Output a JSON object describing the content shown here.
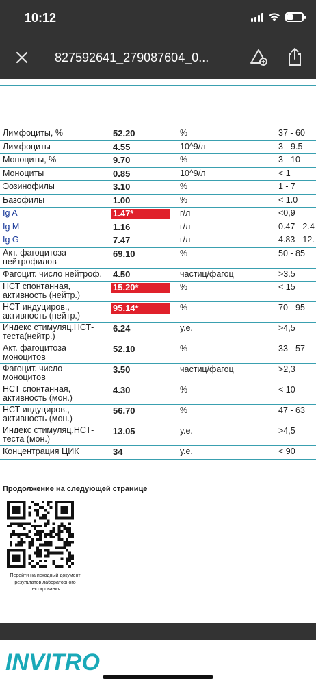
{
  "status_bar": {
    "time": "10:12"
  },
  "nav": {
    "title": "827592641_279087604_0..."
  },
  "results": [
    {
      "name": "Лимфоциты, %",
      "value": "52.20",
      "unit": "%",
      "ref": "37 - 60",
      "flag": false
    },
    {
      "name": "Лимфоциты",
      "value": "4.55",
      "unit": "10^9/л",
      "ref": "3 - 9.5",
      "flag": false
    },
    {
      "name": "Моноциты, %",
      "value": "9.70",
      "unit": "%",
      "ref": "3 - 10",
      "flag": false
    },
    {
      "name": "Моноциты",
      "value": "0.85",
      "unit": "10^9/л",
      "ref": "< 1",
      "flag": false
    },
    {
      "name": "Эозинофилы",
      "value": "3.10",
      "unit": "%",
      "ref": "1 - 7",
      "flag": false
    },
    {
      "name": "Базофилы",
      "value": "1.00",
      "unit": "%",
      "ref": "< 1.0",
      "flag": false
    },
    {
      "name": "Ig A",
      "value": "1.47*",
      "unit": "г/л",
      "ref": "<0,9",
      "flag": true
    },
    {
      "name": "Ig M",
      "value": "1.16",
      "unit": "г/л",
      "ref": "0.47 - 2.4",
      "flag": false
    },
    {
      "name": "Ig G",
      "value": "7.47",
      "unit": "г/л",
      "ref": "4.83 - 12.",
      "flag": false
    },
    {
      "name": "Акт. фагоцитоза нейтрофилов",
      "value": "69.10",
      "unit": "%",
      "ref": "50 - 85",
      "flag": false
    },
    {
      "name": "Фагоцит. число нейтроф.",
      "value": "4.50",
      "unit": "частиц/фагоц",
      "ref": ">3.5",
      "flag": false
    },
    {
      "name": "НСТ спонтанная, активность (нейтр.)",
      "value": "15.20*",
      "unit": "%",
      "ref": "< 15",
      "flag": true
    },
    {
      "name": "НСТ индуциров., активность (нейтр.)",
      "value": "95.14*",
      "unit": "%",
      "ref": "70 - 95",
      "flag": true
    },
    {
      "name": "Индекс стимуляц.НСТ-теста(нейтр.)",
      "value": "6.24",
      "unit": "у.е.",
      "ref": ">4,5",
      "flag": false
    },
    {
      "name": "Акт. фагоцитоза моноцитов",
      "value": "52.10",
      "unit": "%",
      "ref": "33 - 57",
      "flag": false
    },
    {
      "name": "Фагоцит. число моноцитов",
      "value": "3.50",
      "unit": "частиц/фагоц",
      "ref": ">2,3",
      "flag": false
    },
    {
      "name": "НСТ спонтанная, активность (мон.)",
      "value": "4.30",
      "unit": "%",
      "ref": "< 10",
      "flag": false
    },
    {
      "name": "НСТ индуциров., активность (мон.)",
      "value": "56.70",
      "unit": "%",
      "ref": "47 - 63",
      "flag": false
    },
    {
      "name": "Индекс стимуляц.НСТ-теста (мон.)",
      "value": "13.05",
      "unit": "у.е.",
      "ref": ">4,5",
      "flag": false
    },
    {
      "name": "Концентрация ЦИК",
      "value": "34",
      "unit": "у.е.",
      "ref": "< 90",
      "flag": false
    }
  ],
  "continuation": "Продолжение на следующей странице",
  "qr_caption": "Перейти на исходный документ результатов лабораторного тестирования",
  "brand": {
    "logo": "INVITRO",
    "color": "#1aa9b8"
  },
  "colors": {
    "flag": "#e0212b",
    "rule": "#3aa0b0",
    "bar": "#333333"
  }
}
